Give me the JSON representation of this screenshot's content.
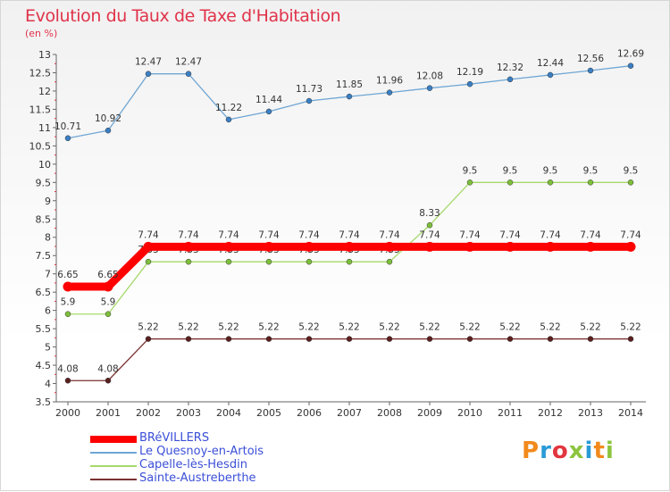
{
  "page": {
    "title": "Evolution du Taux de Taxe d'Habitation",
    "subtitle": "(en %)"
  },
  "brand": {
    "text": "Proxiti",
    "colors": [
      "#f28a1c",
      "#2a9bd6",
      "#e2363e",
      "#8cc43f",
      "#2a9bd6",
      "#f28a1c",
      "#8cc43f"
    ]
  },
  "chart_data": {
    "type": "line",
    "title": "Evolution du Taux de Taxe d'Habitation",
    "subtitle": "(en %)",
    "xlabel": "",
    "ylabel": "",
    "x": [
      "2000",
      "2001",
      "2002",
      "2003",
      "2004",
      "2005",
      "2006",
      "2007",
      "2008",
      "2009",
      "2010",
      "2011",
      "2012",
      "2013",
      "2014"
    ],
    "ylim": [
      3.5,
      13
    ],
    "yticks": [
      "3.5",
      "4",
      "4.5",
      "5",
      "5.5",
      "6",
      "6.5",
      "7",
      "7.5",
      "8",
      "8.5",
      "9",
      "9.5",
      "10",
      "10.5",
      "11",
      "11.5",
      "12",
      "12.5",
      "13"
    ],
    "grid": false,
    "legend_position": "bottom-left",
    "series": [
      {
        "name": "Le Quesnoy-en-Artois",
        "color": "#6fa6d4",
        "marker_color": "#3a7fc4",
        "values": [
          10.71,
          10.92,
          12.47,
          12.47,
          11.22,
          11.44,
          11.73,
          11.85,
          11.96,
          12.08,
          12.19,
          12.32,
          12.44,
          12.56,
          12.69
        ],
        "labels": [
          "10.71",
          "10.92",
          "12.47",
          "12.47",
          "11.22",
          "11.44",
          "11.73",
          "11.85",
          "11.96",
          "12.08",
          "12.19",
          "12.32",
          "12.44",
          "12.56",
          "12.69"
        ]
      },
      {
        "name": "Capelle-lès-Hesdin",
        "color": "#a6d96a",
        "marker_color": "#7dbf3a",
        "values": [
          5.9,
          5.9,
          7.33,
          7.33,
          7.33,
          7.33,
          7.33,
          7.33,
          7.33,
          8.33,
          9.5,
          9.5,
          9.5,
          9.5,
          9.5
        ],
        "labels": [
          "5.9",
          "5.9",
          "7.33",
          "7.33",
          "7.33",
          "7.33",
          "7.33",
          "7.33",
          "7.33",
          "8.33",
          "9.5",
          "9.5",
          "9.5",
          "9.5",
          "9.5"
        ]
      },
      {
        "name": "BRéVILLERS",
        "color": "#ff0000",
        "marker_color": "#ff0000",
        "values": [
          6.65,
          6.65,
          7.74,
          7.74,
          7.74,
          7.74,
          7.74,
          7.74,
          7.74,
          7.74,
          7.74,
          7.74,
          7.74,
          7.74,
          7.74
        ],
        "labels": [
          "6.65",
          "6.65",
          "7.74",
          "7.74",
          "7.74",
          "7.74",
          "7.74",
          "7.74",
          "7.74",
          "7.74",
          "7.74",
          "7.74",
          "7.74",
          "7.74",
          "7.74"
        ]
      },
      {
        "name": "Sainte-Austreberthe",
        "color": "#7a3030",
        "marker_color": "#5a1f1f",
        "values": [
          4.08,
          4.08,
          5.22,
          5.22,
          5.22,
          5.22,
          5.22,
          5.22,
          5.22,
          5.22,
          5.22,
          5.22,
          5.22,
          5.22,
          5.22
        ],
        "labels": [
          "4.08",
          "4.08",
          "5.22",
          "5.22",
          "5.22",
          "5.22",
          "5.22",
          "5.22",
          "5.22",
          "5.22",
          "5.22",
          "5.22",
          "5.22",
          "5.22",
          "5.22"
        ]
      }
    ]
  },
  "legend": [
    {
      "label": "BRéVILLERS",
      "color": "#ff0000",
      "thick": true
    },
    {
      "label": "Le Quesnoy-en-Artois",
      "color": "#6fa6d4",
      "thick": false
    },
    {
      "label": "Capelle-lès-Hesdin",
      "color": "#a6d96a",
      "thick": false
    },
    {
      "label": "Sainte-Austreberthe",
      "color": "#7a3030",
      "thick": false
    }
  ]
}
